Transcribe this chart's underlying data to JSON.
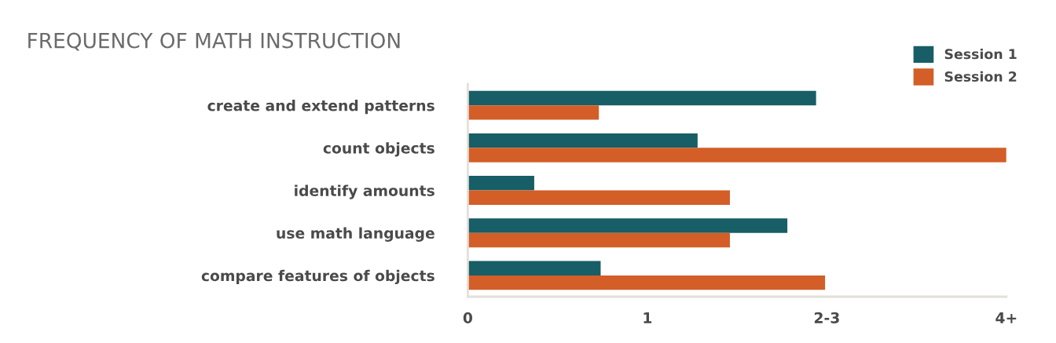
{
  "chart_data": {
    "type": "bar",
    "orientation": "horizontal",
    "title": "FREQUENCY OF MATH INSTRUCTION",
    "categories": [
      "create and extend patterns",
      "count objects",
      "identify amounts",
      "use math language",
      "compare features of objects"
    ],
    "series": [
      {
        "name": "Session 1",
        "color": "#175e66",
        "values": [
          1.94,
          1.28,
          0.37,
          1.78,
          0.74
        ]
      },
      {
        "name": "Session 2",
        "color": "#d35e27",
        "values": [
          0.73,
          3.0,
          1.46,
          1.46,
          1.99
        ]
      }
    ],
    "xlim": [
      0,
      3
    ],
    "xticks": [
      0,
      1,
      {
        "value": 2,
        "label": "2-3"
      },
      {
        "value": 3,
        "label": "4+"
      }
    ],
    "grid": false,
    "legend": "top right"
  }
}
